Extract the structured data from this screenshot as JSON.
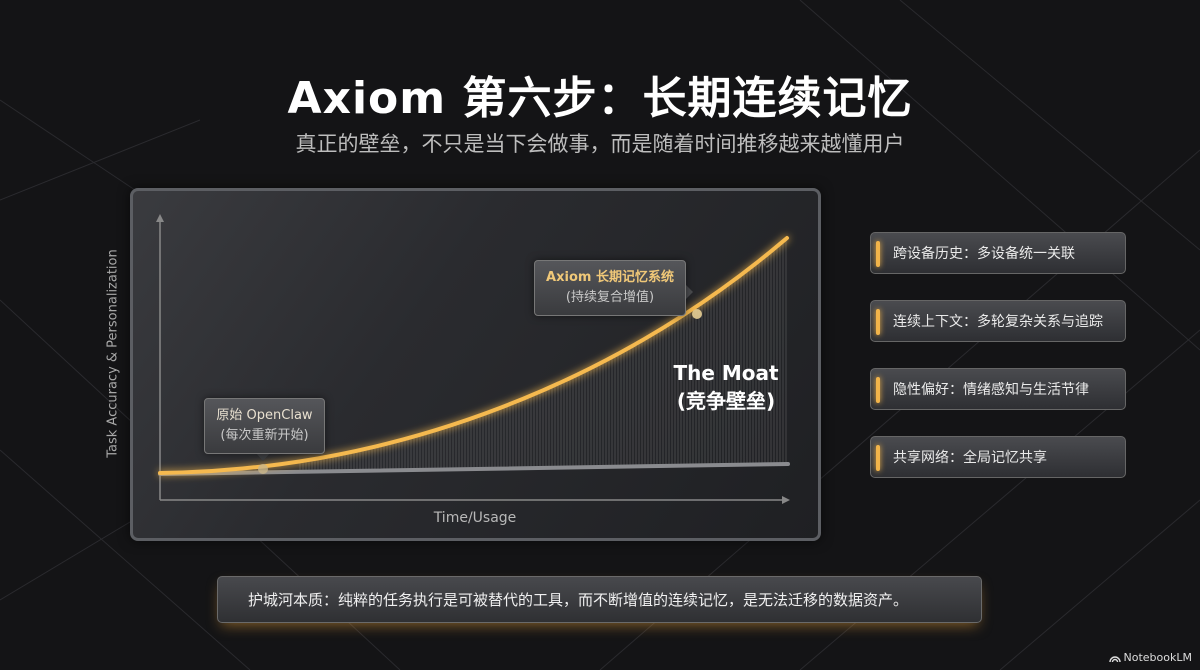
{
  "title": "Axiom 第六步：长期连续记忆",
  "subtitle": "真正的壁垒，不只是当下会做事，而是随着时间推移越来越懂用户",
  "chart": {
    "y_axis_label": "Task Accuracy & Personalization",
    "x_axis_label": "Time/Usage",
    "callout_openclaw": {
      "line1": "原始 OpenClaw",
      "line2": "(每次重新开始)"
    },
    "callout_axiom": {
      "line1": "Axiom 长期记忆系统",
      "line2": "(持续复合增值)"
    },
    "moat_label": {
      "line1": "The Moat",
      "line2": "(竞争壁垒)"
    },
    "colors": {
      "axiom_curve": "#f5b94f",
      "openclaw_line": "#8a8b8f"
    }
  },
  "features": [
    {
      "label": "跨设备历史：多设备统一关联"
    },
    {
      "label": "连续上下文：多轮复杂关系与追踪"
    },
    {
      "label": "隐性偏好：情绪感知与生活节律"
    },
    {
      "label": "共享网络：全局记忆共享"
    }
  ],
  "bottom_note": "护城河本质：纯粹的任务执行是可被替代的工具，而不断增值的连续记忆，是无法迁移的数据资产。",
  "brand": "NotebookLM",
  "accent_color": "#f2b44a"
}
